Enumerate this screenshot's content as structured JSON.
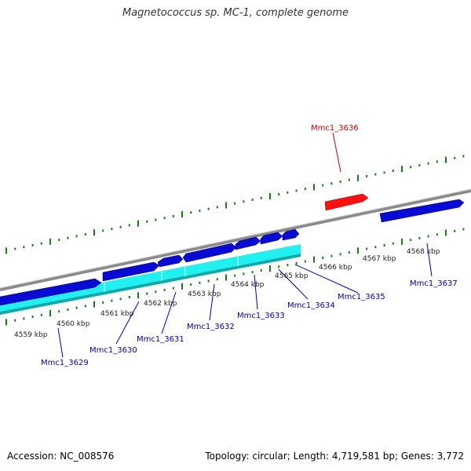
{
  "title": "Magnetococcus sp. MC-1, complete genome",
  "footer": {
    "accession": "Accession: NC_008576",
    "summary": "Topology: circular; Length: 4,719,581 bp; Genes: 3,772"
  },
  "colors": {
    "backbone": "#8a8a8a",
    "forward_gene": "#0a0ad6",
    "reverse_highlight": "#20f0f0",
    "selected_gene": "#ff1010",
    "gene_label": "#0000aa",
    "selected_label": "#cc0000",
    "tick": "#1a7a1a",
    "tick_label": "#222222"
  },
  "scale_labels": [
    "4559 kbp",
    "4560 kbp",
    "4561 kbp",
    "4562 kbp",
    "4563 kbp",
    "4564 kbp",
    "4565 kbp",
    "4566 kbp",
    "4567 kbp",
    "4568 kbp"
  ],
  "genes": [
    {
      "id": "Mmc1_3629",
      "strand": "forward"
    },
    {
      "id": "Mmc1_3630",
      "strand": "forward"
    },
    {
      "id": "Mmc1_3631",
      "strand": "forward"
    },
    {
      "id": "Mmc1_3632",
      "strand": "forward"
    },
    {
      "id": "Mmc1_3633",
      "strand": "forward"
    },
    {
      "id": "Mmc1_3634",
      "strand": "forward"
    },
    {
      "id": "Mmc1_3635",
      "strand": "forward"
    },
    {
      "id": "Mmc1_3636",
      "strand": "forward",
      "selected": true
    },
    {
      "id": "Mmc1_3637",
      "strand": "forward"
    }
  ]
}
